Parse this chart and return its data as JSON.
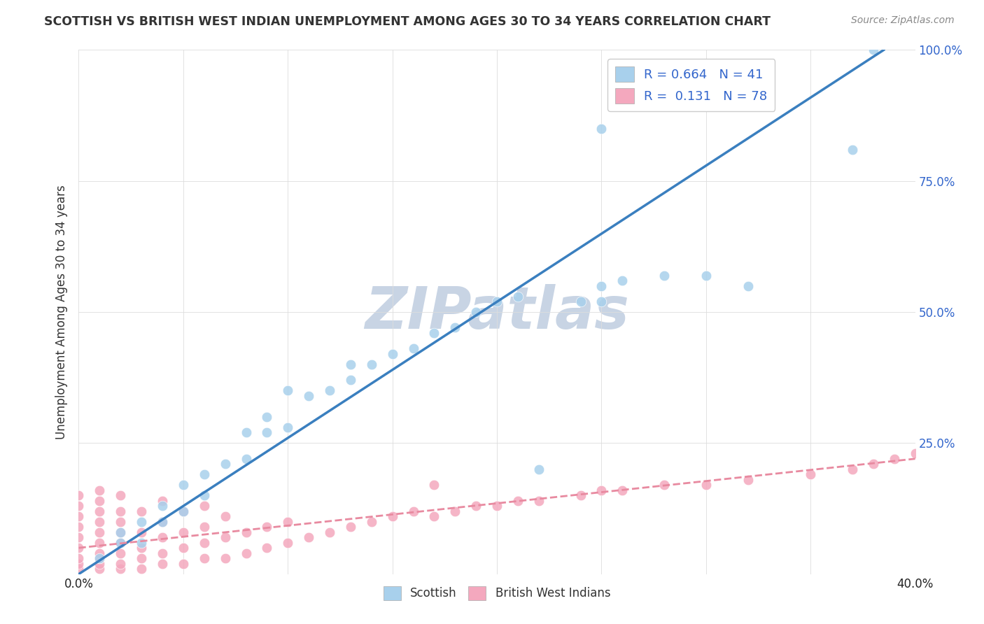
{
  "title": "SCOTTISH VS BRITISH WEST INDIAN UNEMPLOYMENT AMONG AGES 30 TO 34 YEARS CORRELATION CHART",
  "source": "Source: ZipAtlas.com",
  "ylabel": "Unemployment Among Ages 30 to 34 years",
  "xlim": [
    0.0,
    0.4
  ],
  "ylim": [
    0.0,
    1.0
  ],
  "xticks": [
    0.0,
    0.05,
    0.1,
    0.15,
    0.2,
    0.25,
    0.3,
    0.35,
    0.4
  ],
  "xticklabels": [
    "0.0%",
    "",
    "",
    "",
    "",
    "",
    "",
    "",
    "40.0%"
  ],
  "yticks": [
    0.0,
    0.25,
    0.5,
    0.75,
    1.0
  ],
  "yticklabels_right": [
    "",
    "25.0%",
    "50.0%",
    "75.0%",
    "100.0%"
  ],
  "R_scottish": 0.664,
  "N_scottish": 41,
  "R_bwi": 0.131,
  "N_bwi": 78,
  "scottish_color": "#A8D0EC",
  "bwi_color": "#F4A8BE",
  "scottish_line_color": "#3A7FBF",
  "bwi_line_color": "#E88AA0",
  "watermark": "ZIPatlas",
  "watermark_color": "#C8D4E4",
  "scottish_x": [
    0.01,
    0.02,
    0.02,
    0.03,
    0.03,
    0.04,
    0.04,
    0.05,
    0.05,
    0.06,
    0.06,
    0.07,
    0.08,
    0.08,
    0.09,
    0.09,
    0.1,
    0.1,
    0.11,
    0.12,
    0.13,
    0.13,
    0.14,
    0.15,
    0.16,
    0.17,
    0.18,
    0.19,
    0.2,
    0.21,
    0.22,
    0.24,
    0.25,
    0.25,
    0.26,
    0.28,
    0.3,
    0.32,
    0.37,
    0.38,
    0.25
  ],
  "scottish_y": [
    0.03,
    0.06,
    0.08,
    0.06,
    0.1,
    0.1,
    0.13,
    0.12,
    0.17,
    0.15,
    0.19,
    0.21,
    0.22,
    0.27,
    0.27,
    0.3,
    0.28,
    0.35,
    0.34,
    0.35,
    0.37,
    0.4,
    0.4,
    0.42,
    0.43,
    0.46,
    0.47,
    0.5,
    0.52,
    0.53,
    0.2,
    0.52,
    0.55,
    0.52,
    0.56,
    0.57,
    0.57,
    0.55,
    0.81,
    1.0,
    0.85
  ],
  "bwi_x": [
    0.0,
    0.0,
    0.0,
    0.0,
    0.0,
    0.0,
    0.0,
    0.0,
    0.0,
    0.01,
    0.01,
    0.01,
    0.01,
    0.01,
    0.01,
    0.01,
    0.01,
    0.01,
    0.01,
    0.02,
    0.02,
    0.02,
    0.02,
    0.02,
    0.02,
    0.02,
    0.02,
    0.03,
    0.03,
    0.03,
    0.03,
    0.03,
    0.04,
    0.04,
    0.04,
    0.04,
    0.04,
    0.05,
    0.05,
    0.05,
    0.05,
    0.06,
    0.06,
    0.06,
    0.06,
    0.07,
    0.07,
    0.07,
    0.08,
    0.08,
    0.09,
    0.09,
    0.1,
    0.1,
    0.11,
    0.12,
    0.13,
    0.14,
    0.15,
    0.16,
    0.17,
    0.17,
    0.18,
    0.19,
    0.2,
    0.21,
    0.22,
    0.24,
    0.25,
    0.26,
    0.28,
    0.3,
    0.32,
    0.35,
    0.37,
    0.38,
    0.39,
    0.4
  ],
  "bwi_y": [
    0.01,
    0.02,
    0.03,
    0.05,
    0.07,
    0.09,
    0.11,
    0.13,
    0.15,
    0.01,
    0.02,
    0.03,
    0.04,
    0.06,
    0.08,
    0.1,
    0.12,
    0.14,
    0.16,
    0.01,
    0.02,
    0.04,
    0.06,
    0.08,
    0.1,
    0.12,
    0.15,
    0.01,
    0.03,
    0.05,
    0.08,
    0.12,
    0.02,
    0.04,
    0.07,
    0.1,
    0.14,
    0.02,
    0.05,
    0.08,
    0.12,
    0.03,
    0.06,
    0.09,
    0.13,
    0.03,
    0.07,
    0.11,
    0.04,
    0.08,
    0.05,
    0.09,
    0.06,
    0.1,
    0.07,
    0.08,
    0.09,
    0.1,
    0.11,
    0.12,
    0.11,
    0.17,
    0.12,
    0.13,
    0.13,
    0.14,
    0.14,
    0.15,
    0.16,
    0.16,
    0.17,
    0.17,
    0.18,
    0.19,
    0.2,
    0.21,
    0.22,
    0.23
  ],
  "scottish_line_x": [
    0.0,
    0.385
  ],
  "scottish_line_y": [
    0.0,
    1.0
  ],
  "bwi_line_x": [
    0.0,
    0.4
  ],
  "bwi_line_y": [
    0.05,
    0.22
  ]
}
